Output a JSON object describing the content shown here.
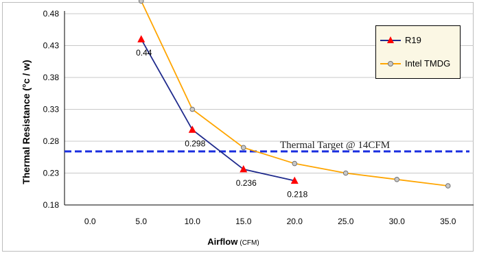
{
  "chart_data": {
    "type": "line",
    "xlabel": "Airflow",
    "xlabel_unit": "(CFM)",
    "ylabel": "Thermal Resistance  (°c / w)",
    "x_ticks": [
      "0.0",
      "5.0",
      "10.0",
      "15.0",
      "20.0",
      "25.0",
      "30.0",
      "35.0"
    ],
    "y_ticks": [
      "0.18",
      "0.23",
      "0.28",
      "0.33",
      "0.38",
      "0.43",
      "0.48"
    ],
    "xlim": [
      0,
      35
    ],
    "ylim": [
      0.18,
      0.48
    ],
    "grid": "horizontal",
    "legend_position": "top-right",
    "series": [
      {
        "name": "R19",
        "color": "#1f2a8c",
        "marker": "triangle",
        "marker_color": "#ff0000",
        "x": [
          5,
          10,
          15,
          20
        ],
        "y": [
          0.44,
          0.298,
          0.236,
          0.218
        ],
        "data_labels": [
          "0.44",
          "0.298",
          "0.236",
          "0.218"
        ]
      },
      {
        "name": "Intel TMDG",
        "color": "#ffa500",
        "marker": "circle",
        "marker_color": "#c0c0c0",
        "x": [
          5,
          10,
          15,
          20,
          25,
          30,
          35
        ],
        "y": [
          0.5,
          0.33,
          0.27,
          0.245,
          0.23,
          0.22,
          0.21
        ],
        "data_labels": []
      }
    ],
    "reference_line": {
      "label": "Thermal Target @ 14CFM",
      "y": 0.264,
      "color": "#1a2ee0",
      "style": "dashed"
    }
  }
}
